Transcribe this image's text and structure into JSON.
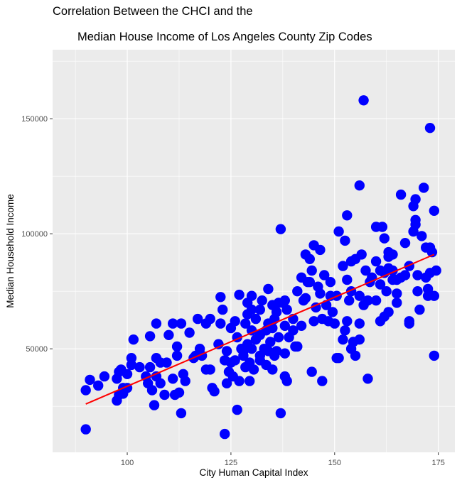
{
  "chart_data": {
    "type": "scatter",
    "title_line1": "Correlation Between the CHCI and the",
    "title_line2": "Median House Income of Los Angeles County Zip Codes",
    "xlabel": "City Human Capital Index",
    "ylabel": "Median Household Income",
    "xlim": [
      82,
      179
    ],
    "ylim": [
      5000,
      180000
    ],
    "x_ticks": [
      100,
      125,
      150,
      175
    ],
    "y_ticks": [
      50000,
      100000,
      150000
    ],
    "x_tick_labels": [
      "100",
      "125",
      "150",
      "175"
    ],
    "y_tick_labels": [
      "50000",
      "100000",
      "150000"
    ],
    "grid": true,
    "point_color": "#0000ff",
    "line_color": "#ff0000",
    "panel_color": "#ebebeb",
    "trend_line": {
      "x": [
        90,
        174
      ],
      "y": [
        26000,
        91000
      ]
    },
    "points": [
      [
        90,
        15000
      ],
      [
        90,
        32000
      ],
      [
        91,
        36500
      ],
      [
        93,
        34000
      ],
      [
        94.5,
        38000
      ],
      [
        97.5,
        27500
      ],
      [
        98,
        30000
      ],
      [
        97.5,
        37000
      ],
      [
        98,
        40000
      ],
      [
        98.5,
        41000
      ],
      [
        99,
        33000
      ],
      [
        99,
        30500
      ],
      [
        100,
        33000
      ],
      [
        100,
        39000
      ],
      [
        101,
        43000
      ],
      [
        101,
        46000
      ],
      [
        101.5,
        54000
      ],
      [
        103,
        42000
      ],
      [
        104.5,
        38000
      ],
      [
        105,
        35000
      ],
      [
        105.5,
        42000
      ],
      [
        105.5,
        55500
      ],
      [
        106,
        32000
      ],
      [
        106.5,
        25500
      ],
      [
        107,
        38000
      ],
      [
        107,
        46000
      ],
      [
        107,
        61000
      ],
      [
        108,
        35000
      ],
      [
        108,
        44000
      ],
      [
        109,
        30000
      ],
      [
        109.5,
        44000
      ],
      [
        110,
        56000
      ],
      [
        111,
        37000
      ],
      [
        111,
        61000
      ],
      [
        111.5,
        30000
      ],
      [
        112,
        47000
      ],
      [
        112,
        51000
      ],
      [
        112.5,
        31000
      ],
      [
        113,
        61000
      ],
      [
        113,
        22000
      ],
      [
        113.5,
        39000
      ],
      [
        114,
        36000
      ],
      [
        115,
        57000
      ],
      [
        116,
        46000
      ],
      [
        116.5,
        47000
      ],
      [
        117,
        63000
      ],
      [
        117.5,
        50000
      ],
      [
        118,
        47000
      ],
      [
        119,
        41000
      ],
      [
        119,
        61000
      ],
      [
        120,
        63000
      ],
      [
        120,
        41000
      ],
      [
        120.5,
        33000
      ],
      [
        121,
        31500
      ],
      [
        122,
        52000
      ],
      [
        122.5,
        72500
      ],
      [
        122.5,
        61000
      ],
      [
        123,
        67000
      ],
      [
        123.5,
        45000
      ],
      [
        123.5,
        13000
      ],
      [
        124,
        35000
      ],
      [
        124,
        49000
      ],
      [
        124.5,
        40000
      ],
      [
        125,
        44000
      ],
      [
        125,
        59000
      ],
      [
        125.5,
        38000
      ],
      [
        126,
        45000
      ],
      [
        126,
        62000
      ],
      [
        126.5,
        55000
      ],
      [
        126.5,
        23500
      ],
      [
        127,
        36000
      ],
      [
        127,
        73500
      ],
      [
        127.5,
        50000
      ],
      [
        128,
        47000
      ],
      [
        128,
        49000
      ],
      [
        128.5,
        42000
      ],
      [
        128.5,
        61000
      ],
      [
        129,
        65000
      ],
      [
        129,
        70000
      ],
      [
        129,
        52000
      ],
      [
        129.5,
        36000
      ],
      [
        129.5,
        44000
      ],
      [
        130,
        58000
      ],
      [
        130,
        67000
      ],
      [
        130,
        73000
      ],
      [
        130,
        50000
      ],
      [
        130.5,
        41000
      ],
      [
        131,
        54000
      ],
      [
        131,
        63000
      ],
      [
        132,
        56000
      ],
      [
        132,
        67000
      ],
      [
        132,
        45000
      ],
      [
        132,
        47000
      ],
      [
        132.5,
        71000
      ],
      [
        133,
        50000
      ],
      [
        133.5,
        43000
      ],
      [
        133.5,
        58000
      ],
      [
        134,
        49000
      ],
      [
        134,
        61000
      ],
      [
        134,
        76000
      ],
      [
        134.5,
        53000
      ],
      [
        135,
        41000
      ],
      [
        135,
        59000
      ],
      [
        135,
        69000
      ],
      [
        135.5,
        63000
      ],
      [
        135.5,
        47000
      ],
      [
        136,
        49000
      ],
      [
        136,
        66000
      ],
      [
        136.5,
        70000
      ],
      [
        136.5,
        55000
      ],
      [
        137,
        102000
      ],
      [
        137,
        22000
      ],
      [
        137.5,
        70000
      ],
      [
        138,
        38000
      ],
      [
        138,
        48000
      ],
      [
        138,
        60000
      ],
      [
        138,
        71000
      ],
      [
        138.5,
        67000
      ],
      [
        138.5,
        36000
      ],
      [
        139,
        55000
      ],
      [
        140,
        63000
      ],
      [
        140,
        58000
      ],
      [
        140.5,
        51000
      ],
      [
        141,
        51000
      ],
      [
        141,
        75000
      ],
      [
        142,
        81000
      ],
      [
        142,
        60000
      ],
      [
        142.5,
        71000
      ],
      [
        143,
        91000
      ],
      [
        143,
        72000
      ],
      [
        143.5,
        79000
      ],
      [
        144,
        89000
      ],
      [
        144,
        79000
      ],
      [
        144.5,
        84000
      ],
      [
        144.5,
        40000
      ],
      [
        145,
        95000
      ],
      [
        145,
        62000
      ],
      [
        145.5,
        68000
      ],
      [
        146,
        77000
      ],
      [
        146.5,
        74000
      ],
      [
        146.5,
        93000
      ],
      [
        147,
        36000
      ],
      [
        147,
        63000
      ],
      [
        147.5,
        82000
      ],
      [
        148,
        69000
      ],
      [
        148.5,
        62000
      ],
      [
        149,
        79000
      ],
      [
        149,
        73000
      ],
      [
        149.5,
        66000
      ],
      [
        150,
        61000
      ],
      [
        150.5,
        73000
      ],
      [
        150.5,
        46000
      ],
      [
        151,
        46000
      ],
      [
        151,
        101000
      ],
      [
        152,
        54000
      ],
      [
        152,
        86000
      ],
      [
        152.5,
        97000
      ],
      [
        152.5,
        58000
      ],
      [
        153,
        108000
      ],
      [
        153,
        80000
      ],
      [
        153,
        62000
      ],
      [
        153.5,
        71000
      ],
      [
        154,
        88000
      ],
      [
        154,
        75000
      ],
      [
        154,
        50000
      ],
      [
        154.5,
        53000
      ],
      [
        155,
        89000
      ],
      [
        155,
        47000
      ],
      [
        156,
        61000
      ],
      [
        156,
        121000
      ],
      [
        156,
        73000
      ],
      [
        156,
        54000
      ],
      [
        156.5,
        91000
      ],
      [
        157,
        158000
      ],
      [
        157,
        69000
      ],
      [
        157.5,
        84000
      ],
      [
        158,
        37000
      ],
      [
        158,
        71000
      ],
      [
        158.5,
        79000
      ],
      [
        159,
        81000
      ],
      [
        160,
        88000
      ],
      [
        160,
        103000
      ],
      [
        160,
        71000
      ],
      [
        161,
        62000
      ],
      [
        161,
        84000
      ],
      [
        161,
        78000
      ],
      [
        161.5,
        103000
      ],
      [
        162,
        64000
      ],
      [
        162,
        98000
      ],
      [
        162,
        83000
      ],
      [
        162.5,
        75000
      ],
      [
        163,
        85000
      ],
      [
        163,
        92000
      ],
      [
        163,
        66000
      ],
      [
        163,
        90000
      ],
      [
        164,
        80000
      ],
      [
        164,
        91000
      ],
      [
        164,
        84000
      ],
      [
        165,
        74000
      ],
      [
        165,
        80000
      ],
      [
        165,
        70000
      ],
      [
        166,
        117000
      ],
      [
        166,
        81000
      ],
      [
        167,
        96000
      ],
      [
        167,
        82000
      ],
      [
        168,
        61000
      ],
      [
        168,
        86000
      ],
      [
        168,
        62000
      ],
      [
        169,
        112000
      ],
      [
        169,
        101000
      ],
      [
        169.5,
        115000
      ],
      [
        169.5,
        106000
      ],
      [
        169.5,
        104000
      ],
      [
        170,
        82000
      ],
      [
        170,
        75000
      ],
      [
        170.5,
        67000
      ],
      [
        171,
        99000
      ],
      [
        171.5,
        120000
      ],
      [
        172,
        81000
      ],
      [
        172,
        94000
      ],
      [
        172.5,
        76000
      ],
      [
        173,
        146000
      ],
      [
        173,
        94000
      ],
      [
        173,
        83000
      ],
      [
        173.5,
        92000
      ],
      [
        174,
        73000
      ],
      [
        174,
        110000
      ],
      [
        174,
        47000
      ],
      [
        174.5,
        84000
      ],
      [
        172.5,
        73000
      ]
    ]
  }
}
